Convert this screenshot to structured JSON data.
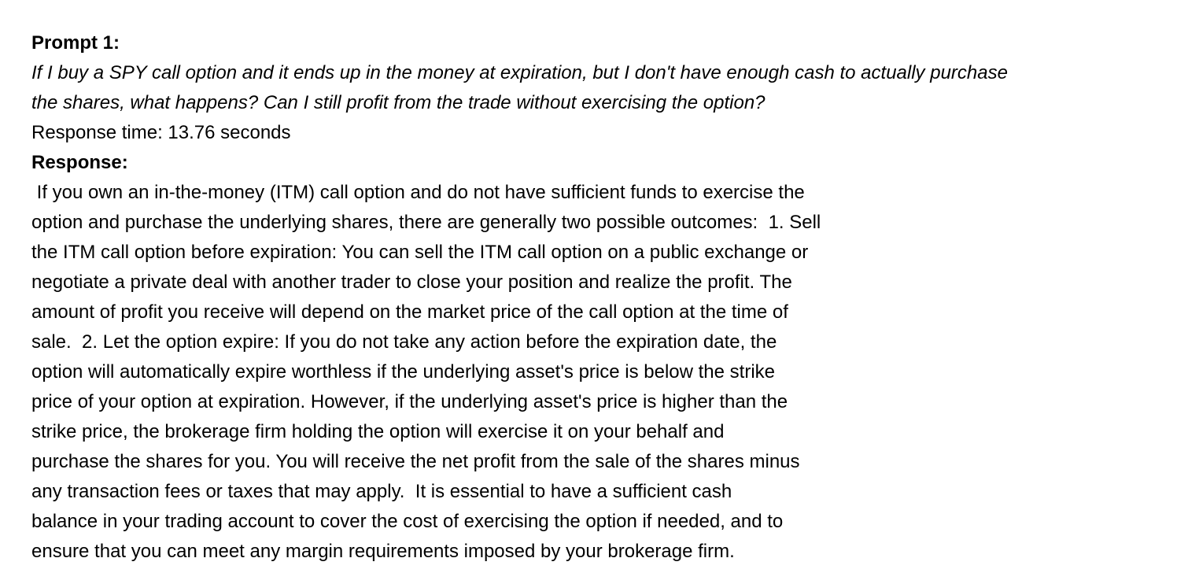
{
  "prompt": {
    "heading": "Prompt 1:",
    "question_lines": [
      "If I buy a SPY call option and it ends up in the money at expiration, but I don't have enough cash to actually purchase",
      "the shares, what happens? Can I still profit from the trade without exercising the option?"
    ],
    "response_time": "Response time: 13.76 seconds"
  },
  "response": {
    "heading": "Response:",
    "lines": [
      " If you own an in-the-money (ITM) call option and do not have sufficient funds to exercise the",
      "option and purchase the underlying shares, there are generally two possible outcomes:  1. Sell",
      "the ITM call option before expiration: You can sell the ITM call option on a public exchange or",
      "negotiate a private deal with another trader to close your position and realize the profit. The",
      "amount of profit you receive will depend on the market price of the call option at the time of",
      "sale.  2. Let the option expire: If you do not take any action before the expiration date, the",
      "option will automatically expire worthless if the underlying asset's price is below the strike",
      "price of your option at expiration. However, if the underlying asset's price is higher than the",
      "strike price, the brokerage firm holding the option will exercise it on your behalf and",
      "purchase the shares for you. You will receive the net profit from the sale of the shares minus",
      "any transaction fees or taxes that may apply.  It is essential to have a sufficient cash",
      "balance in your trading account to cover the cost of exercising the option if needed, and to",
      "ensure that you can meet any margin requirements imposed by your brokerage firm."
    ]
  }
}
